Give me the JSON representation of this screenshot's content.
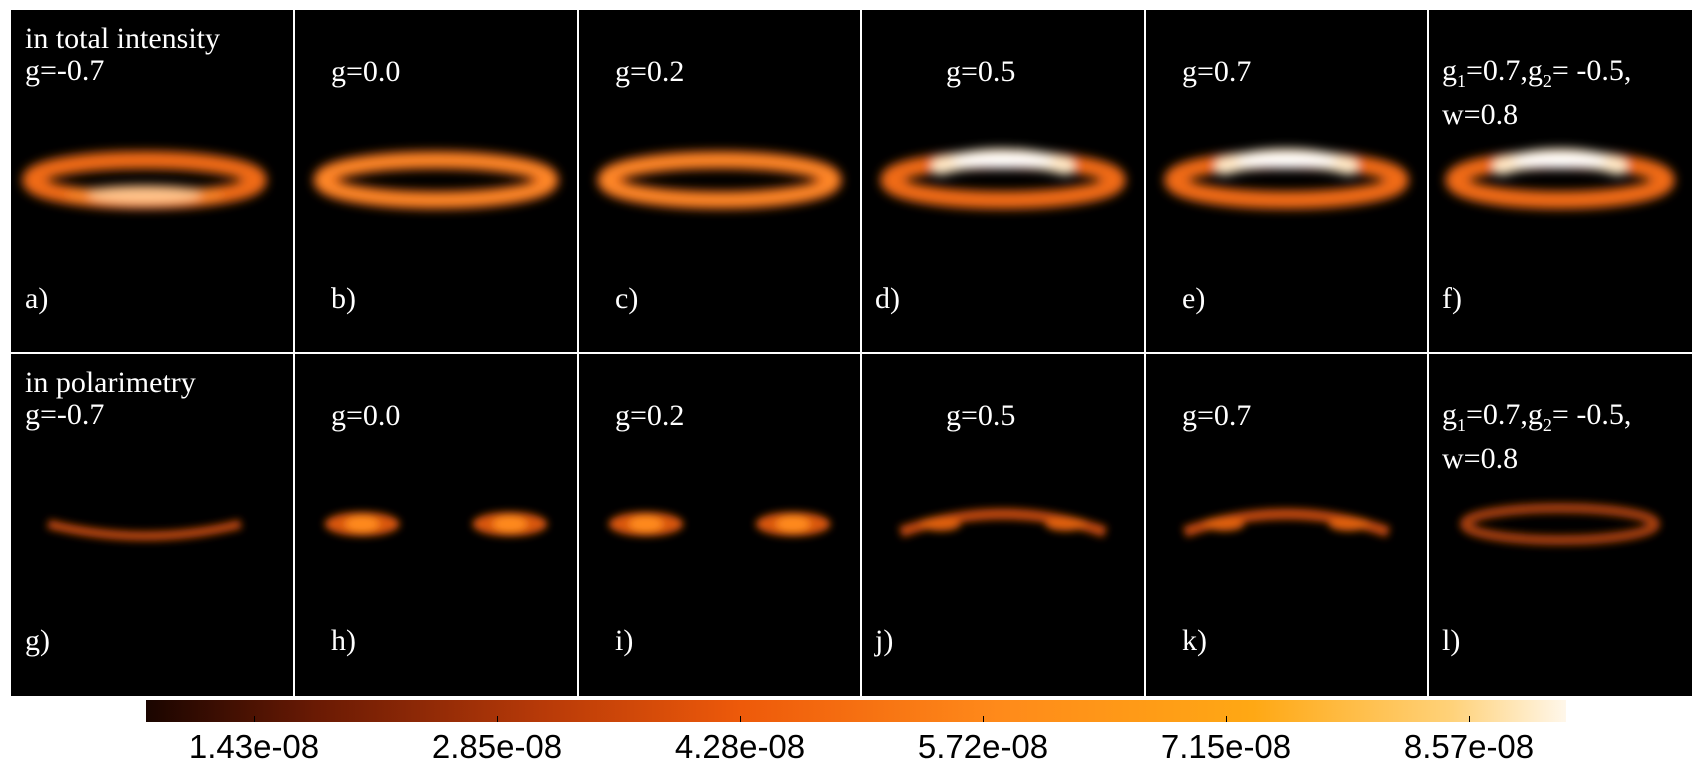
{
  "figure": {
    "row_titles": [
      "in total intensity",
      "in polarimetry"
    ],
    "panels": [
      {
        "row": 0,
        "col": 0,
        "letter": "a)",
        "g_label": "g=-0.7",
        "kind": "intensity",
        "brightness": "bottom"
      },
      {
        "row": 0,
        "col": 1,
        "letter": "b)",
        "g_label": "g=0.0",
        "kind": "intensity",
        "brightness": "symmetric"
      },
      {
        "row": 0,
        "col": 2,
        "letter": "c)",
        "g_label": "g=0.2",
        "kind": "intensity",
        "brightness": "symmetric"
      },
      {
        "row": 0,
        "col": 3,
        "letter": "d)",
        "g_label": "g=0.5",
        "kind": "intensity",
        "brightness": "top"
      },
      {
        "row": 0,
        "col": 4,
        "letter": "e)",
        "g_label": "g=0.7",
        "kind": "intensity",
        "brightness": "top"
      },
      {
        "row": 0,
        "col": 5,
        "letter": "f)",
        "g_label": "g1=0.7,g2= -0.5, w=0.8",
        "kind": "intensity",
        "brightness": "top"
      },
      {
        "row": 1,
        "col": 0,
        "letter": "g)",
        "g_label": "g=-0.7",
        "kind": "polarimetry",
        "brightness": "bottom"
      },
      {
        "row": 1,
        "col": 1,
        "letter": "h)",
        "g_label": "g=0.0",
        "kind": "polarimetry",
        "brightness": "symmetric"
      },
      {
        "row": 1,
        "col": 2,
        "letter": "i)",
        "g_label": "g=0.2",
        "kind": "polarimetry",
        "brightness": "symmetric"
      },
      {
        "row": 1,
        "col": 3,
        "letter": "j)",
        "g_label": "g=0.5",
        "kind": "polarimetry",
        "brightness": "top"
      },
      {
        "row": 1,
        "col": 4,
        "letter": "k)",
        "g_label": "g=0.7",
        "kind": "polarimetry",
        "brightness": "top"
      },
      {
        "row": 1,
        "col": 5,
        "letter": "l)",
        "g_label": "g1=0.7,g2= -0.5, w=0.8",
        "kind": "polarimetry",
        "brightness": "symmetric"
      }
    ],
    "colorbar": {
      "ticks": [
        "1.43e-08",
        "2.85e-08",
        "4.28e-08",
        "5.72e-08",
        "7.15e-08",
        "8.57e-08"
      ],
      "colors": [
        "#1a0500",
        "#6a1a04",
        "#b83a08",
        "#ee5a0a",
        "#ff8a1a",
        "#ffa814",
        "#ffd27a",
        "#fff7ea"
      ]
    }
  }
}
